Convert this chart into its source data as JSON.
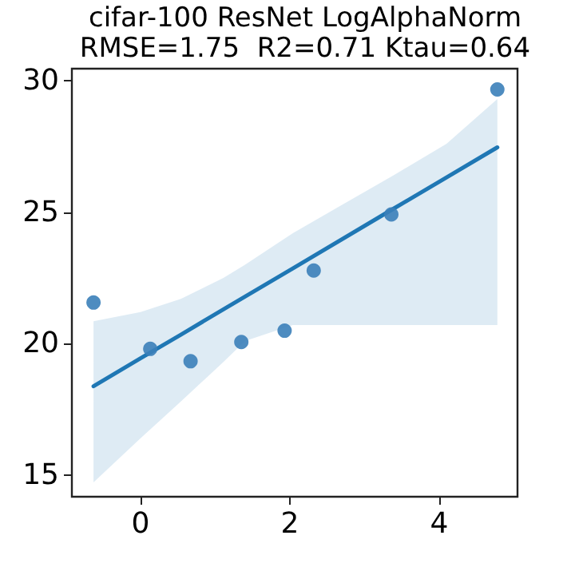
{
  "chart_data": {
    "type": "scatter",
    "title": "cifar-100 ResNet LogAlphaNorm",
    "subtitle": "RMSE=1.75  R2=0.71 Ktau=0.64",
    "xlim": [
      -0.92,
      5.05
    ],
    "xticks": [
      0,
      2,
      4
    ],
    "ylim": [
      14.18,
      30.45
    ],
    "yticks": [
      15,
      20,
      25,
      30
    ],
    "grid": false,
    "series": [
      {
        "color": "#3b80b9",
        "marker": "circle",
        "x": [
          -0.63,
          0.13,
          0.67,
          1.35,
          1.93,
          2.32,
          3.36,
          4.78
        ],
        "values": [
          21.56,
          19.8,
          19.33,
          20.06,
          20.49,
          22.78,
          24.91,
          29.66
        ]
      },
      {
        "type": "line",
        "color": "#1f77b4",
        "line_style": "solid",
        "x": [
          -0.63,
          0,
          0.54,
          1.11,
          1.4,
          2.04,
          3.39,
          4.1,
          4.78
        ],
        "values": [
          18.38,
          19.44,
          20.34,
          21.3,
          21.79,
          22.86,
          25.13,
          26.32,
          27.46
        ],
        "lower": [
          14.73,
          16.4,
          17.8,
          19.3,
          20.1,
          20.71,
          20.71,
          20.71,
          20.71
        ],
        "upper": [
          20.85,
          21.2,
          21.7,
          22.5,
          23.0,
          24.2,
          26.4,
          27.6,
          29.3
        ]
      }
    ]
  }
}
